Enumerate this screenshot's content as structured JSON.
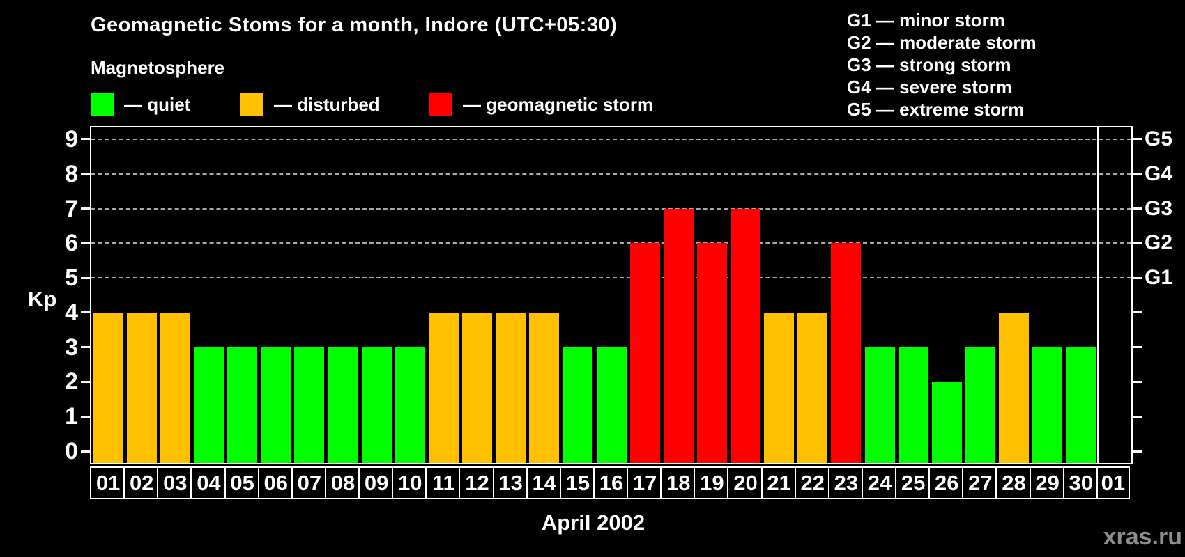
{
  "header": {
    "title": "Geomagnetic Stoms for a month, Indore (UTC+05:30)",
    "magnetosphere_label": "Magnetosphere",
    "legend": [
      {
        "key": "quiet",
        "label": "— quiet",
        "color": "#00ff00",
        "x": 130
      },
      {
        "key": "disturbed",
        "label": "— disturbed",
        "color": "#ffc000",
        "x": 345
      },
      {
        "key": "storm",
        "label": "— geomagnetic storm",
        "color": "#ff0000",
        "x": 616
      }
    ],
    "g_scale": [
      "G1 — minor storm",
      "G2 — moderate storm",
      "G3 — strong storm",
      "G4 — severe storm",
      "G5 — extreme storm"
    ]
  },
  "chart_data": {
    "type": "bar",
    "title": "Geomagnetic Stoms for a month, Indore (UTC+05:30)",
    "ylabel": "Kp",
    "xlabel": "April 2002",
    "ylim": [
      0,
      9
    ],
    "yticks": [
      0,
      1,
      2,
      3,
      4,
      5,
      6,
      7,
      8,
      9
    ],
    "gridlines_kp": [
      5,
      6,
      7,
      8,
      9
    ],
    "grid": "dashed-horizontal-upper-only",
    "legend_position": "top-left",
    "categories": [
      "01",
      "02",
      "03",
      "04",
      "05",
      "06",
      "07",
      "08",
      "09",
      "10",
      "11",
      "12",
      "13",
      "14",
      "15",
      "16",
      "17",
      "18",
      "19",
      "20",
      "21",
      "22",
      "23",
      "24",
      "25",
      "26",
      "27",
      "28",
      "29",
      "30",
      "01"
    ],
    "values": [
      4,
      4,
      4,
      3,
      3,
      3,
      3,
      3,
      3,
      3,
      4,
      4,
      4,
      4,
      3,
      3,
      6,
      7,
      6,
      7,
      4,
      4,
      6,
      3,
      3,
      2,
      3,
      4,
      3,
      3,
      null
    ],
    "states": [
      "disturbed",
      "disturbed",
      "disturbed",
      "quiet",
      "quiet",
      "quiet",
      "quiet",
      "quiet",
      "quiet",
      "quiet",
      "disturbed",
      "disturbed",
      "disturbed",
      "disturbed",
      "quiet",
      "quiet",
      "storm",
      "storm",
      "storm",
      "storm",
      "disturbed",
      "disturbed",
      "storm",
      "quiet",
      "quiet",
      "quiet",
      "quiet",
      "disturbed",
      "quiet",
      "quiet",
      "none"
    ],
    "state_colors": {
      "quiet": "#00ff00",
      "disturbed": "#ffc000",
      "storm": "#ff0000"
    },
    "right_axis": [
      {
        "kp": 5,
        "label": "G1"
      },
      {
        "kp": 6,
        "label": "G2"
      },
      {
        "kp": 7,
        "label": "G3"
      },
      {
        "kp": 8,
        "label": "G4"
      },
      {
        "kp": 9,
        "label": "G5"
      }
    ],
    "month_separator_before_index": 30
  },
  "footer": {
    "watermark": "xras.ru"
  }
}
